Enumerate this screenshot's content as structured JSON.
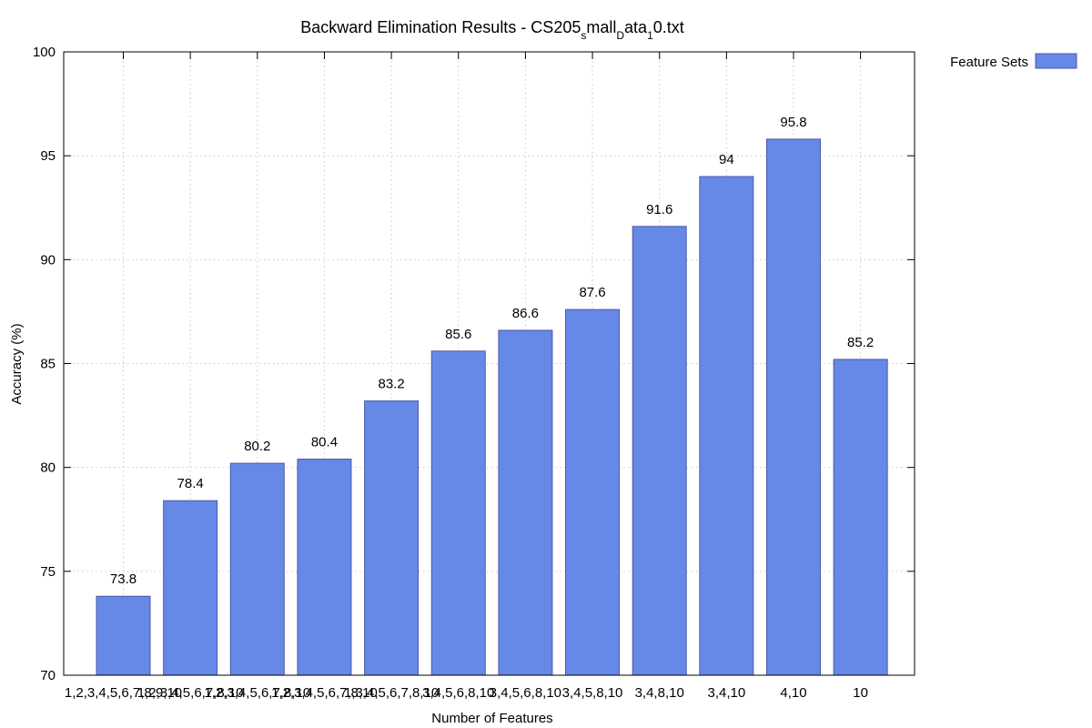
{
  "chart_data": {
    "type": "bar",
    "title": {
      "main": "Backward Elimination Results - CS205",
      "sub1": "s",
      "mid1": "mall",
      "sub2": "D",
      "mid2": "ata",
      "sub3": "1",
      "end": "0.txt"
    },
    "xlabel": "Number of Features",
    "ylabel": "Accuracy (%)",
    "ylim": [
      70,
      100
    ],
    "yticks": [
      70,
      75,
      80,
      85,
      90,
      95,
      100
    ],
    "grid": true,
    "legend_position": "top-right-outside",
    "legend": [
      "Feature Sets"
    ],
    "categories": [
      "1,2,3,4,5,6,7,8,9,10",
      "1,2,3,4,5,6,7,8,10",
      "1,2,3,4,5,6,7,8,10",
      "1,2,3,4,5,6,7,8,10",
      "1,3,4,5,6,7,8,10",
      "3,4,5,6,8,10",
      "3,4,5,6,8,10",
      "3,4,5,8,10",
      "3,4,8,10",
      "3,4,10",
      "4,10",
      "10"
    ],
    "series": [
      {
        "name": "Feature Sets",
        "values": [
          73.8,
          78.4,
          80.2,
          80.4,
          83.2,
          85.6,
          86.6,
          87.6,
          91.6,
          94,
          95.8,
          85.2
        ],
        "color": "#6688e6"
      }
    ],
    "data_labels": [
      "73.8",
      "78.4",
      "80.2",
      "80.4",
      "83.2",
      "85.6",
      "86.6",
      "87.6",
      "91.6",
      "94",
      "95.8",
      "85.2"
    ]
  }
}
